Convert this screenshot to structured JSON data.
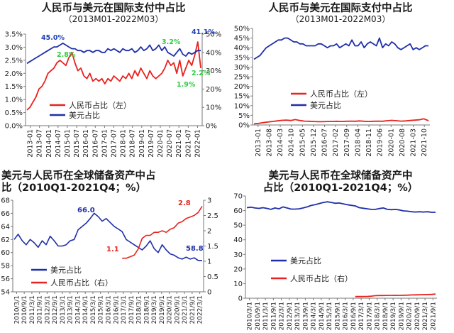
{
  "charts": [
    {
      "id": "p1",
      "title_line1": "人民币与美元在国际支付中占比",
      "title_line2": "（2013M01-2022M03）",
      "type": "line",
      "left_axis": {
        "ticks": [
          "0.0%",
          "0.5%",
          "1.0%",
          "1.5%",
          "2.0%",
          "2.5%",
          "3.0%",
          "3.5%"
        ],
        "min": 0,
        "max": 3.5
      },
      "right_axis": {
        "ticks": [
          "0%",
          "10%",
          "20%",
          "30%",
          "40%",
          "50%"
        ],
        "min": 0,
        "max": 50
      },
      "x_labels": [
        "2013-01",
        "2013-07",
        "2014-01",
        "2014-07",
        "2015-01",
        "2015-07",
        "2016-01",
        "2016-07",
        "2017-01",
        "2017-07",
        "2018-01",
        "2018-07",
        "2019-01",
        "2019-07",
        "2020-01",
        "2020-07",
        "2021-01",
        "2021-07",
        "2022-01"
      ],
      "legend": [
        "人民币占比（左）",
        "美元占比"
      ],
      "annotations": [
        {
          "text": "45.0%",
          "color": "#1f3fb5"
        },
        {
          "text": "2.8%",
          "color": "#2ecc40"
        },
        {
          "text": "3.2%",
          "color": "#2ecc40"
        },
        {
          "text": "41.1%",
          "color": "#1f3fb5"
        },
        {
          "text": "1.9%",
          "color": "#2ecc40"
        },
        {
          "text": "2.2%",
          "color": "#2ecc40"
        }
      ],
      "series": [
        {
          "name": "人民币占比（左）",
          "color": "#e8231f",
          "axis": "left",
          "values": [
            0.6,
            0.7,
            0.9,
            1.1,
            1.4,
            1.5,
            1.7,
            2.0,
            2.1,
            2.2,
            2.4,
            2.5,
            2.4,
            2.3,
            2.6,
            2.8,
            2.4,
            2.1,
            2.2,
            1.9,
            1.8,
            2.0,
            1.7,
            1.8,
            1.7,
            1.8,
            1.6,
            1.8,
            1.7,
            1.9,
            1.8,
            1.7,
            1.9,
            1.8,
            2.0,
            1.8,
            2.1,
            1.9,
            2.2,
            2.0,
            1.8,
            2.1,
            1.9,
            1.8,
            1.9,
            2.0,
            2.2,
            2.5,
            2.3,
            2.4,
            2.0,
            2.5,
            1.9,
            2.2,
            2.5,
            2.3,
            2.7,
            3.2,
            2.2
          ]
        },
        {
          "name": "美元占比",
          "color": "#1f2fa8",
          "axis": "right",
          "values": [
            34,
            35,
            36,
            37,
            38,
            39,
            40,
            41,
            42,
            43,
            43,
            44,
            45,
            44,
            43,
            42,
            42,
            41,
            41,
            40,
            41,
            41,
            40,
            41,
            41,
            40,
            40,
            42,
            41,
            42,
            41,
            40,
            42,
            41,
            41,
            42,
            40,
            41,
            43,
            41,
            42,
            44,
            41,
            42,
            44,
            41,
            43,
            40,
            39,
            38,
            40,
            42,
            39,
            38,
            40,
            39,
            40,
            41,
            41
          ]
        }
      ]
    },
    {
      "id": "p2",
      "title_line1": "人民币与美元在国际支付中占比",
      "title_line2": "（2013M01-2022M03）",
      "type": "line",
      "left_axis": {
        "ticks": [
          "0%",
          "5%",
          "10%",
          "15%",
          "20%",
          "25%",
          "30%",
          "35%",
          "40%",
          "45%",
          "50%"
        ],
        "min": 0,
        "max": 50
      },
      "x_labels": [
        "2013-01",
        "2013-08",
        "2014-03",
        "2014-10",
        "2015-05",
        "2015-12",
        "2016-07",
        "2017-02",
        "2017-09",
        "2018-04",
        "2018-11",
        "2019-06",
        "2020-01",
        "2020-08",
        "2021-03",
        "2021-10"
      ],
      "legend": [
        "人民币占比（左）",
        "美元占比"
      ],
      "series": [
        {
          "name": "人民币占比（左）",
          "color": "#e8231f",
          "values": [
            0.6,
            0.8,
            1.2,
            1.5,
            1.8,
            2.1,
            2.4,
            2.5,
            2.3,
            2.8,
            2.3,
            2.0,
            1.9,
            1.8,
            1.7,
            1.7,
            1.8,
            1.8,
            1.9,
            1.8,
            1.9,
            2.0,
            1.9,
            2.1,
            1.9,
            1.8,
            1.9,
            2.0,
            1.9,
            2.2,
            2.4,
            2.2,
            2.0,
            2.1,
            2.3,
            2.5,
            2.7,
            3.2,
            2.2
          ]
        },
        {
          "name": "美元占比",
          "color": "#1f2fa8",
          "values": [
            34,
            35,
            36,
            38,
            40,
            41,
            42,
            43,
            44,
            44,
            45,
            45,
            44,
            43,
            43,
            42,
            42,
            41,
            41,
            41,
            41,
            42,
            42,
            41,
            40,
            41,
            41,
            42,
            40,
            41,
            42,
            41,
            44,
            41,
            41,
            43,
            40,
            42,
            43,
            42,
            41,
            45,
            40,
            42,
            41,
            43,
            42,
            40,
            39,
            40,
            41,
            42,
            39,
            40,
            39,
            40,
            41,
            41
          ]
        }
      ]
    },
    {
      "id": "p3",
      "title_line1": "美元与人民币在全球储备资产中占",
      "title_line2": "比（2010Q1-2021Q4；%）",
      "type": "line",
      "left_axis": {
        "ticks": [
          "54",
          "56",
          "58",
          "60",
          "62",
          "64",
          "66",
          "68"
        ],
        "min": 54,
        "max": 68
      },
      "right_axis": {
        "ticks": [
          "0",
          "0.5",
          "1",
          "1.5",
          "2",
          "2.5",
          "3"
        ],
        "min": 0,
        "max": 3
      },
      "x_labels": [
        "2010/3/1",
        "2010/9/1",
        "2011/3/1",
        "2011/9/1",
        "2012/3/1",
        "2012/9/1",
        "2013/3/1",
        "2013/9/1",
        "2014/3/1",
        "2014/9/1",
        "2015/3/1",
        "2015/9/1",
        "2016/3/1",
        "2016/9/1",
        "2017/3/1",
        "2017/9/1",
        "2018/3/1",
        "2018/9/1",
        "2019/3/1",
        "2019/9/1",
        "2020/3/1",
        "2020/9/1",
        "2021/3/1",
        "2021/9/1",
        "2022/3/1"
      ],
      "legend": [
        "美元占比",
        "人民币占比（右）"
      ],
      "annotations": [
        {
          "text": "66.0",
          "color": "#1f2fa8"
        },
        {
          "text": "2.8",
          "color": "#e8231f"
        },
        {
          "text": "1.1",
          "color": "#e8231f"
        },
        {
          "text": "58.8",
          "color": "#1f2fa8"
        }
      ],
      "series": [
        {
          "name": "美元占比",
          "color": "#1f2fa8",
          "axis": "left",
          "values": [
            62.0,
            62.8,
            61.8,
            61.2,
            62.0,
            61.5,
            60.8,
            61.8,
            61.2,
            62.5,
            61.8,
            61.0,
            61.0,
            61.2,
            61.8,
            62.0,
            63.5,
            64.0,
            64.5,
            65.2,
            66.0,
            65.5,
            64.8,
            65.2,
            64.6,
            64.0,
            63.6,
            63.2,
            62.0,
            61.6,
            61.2,
            60.8,
            60.4,
            61.0,
            61.8,
            60.6,
            60.0,
            61.2,
            60.4,
            59.8,
            59.6,
            59.2,
            59.0,
            59.3,
            59.0,
            59.2,
            58.8,
            58.8
          ]
        },
        {
          "name": "人民币占比（右）",
          "color": "#e8231f",
          "axis": "right",
          "startIndex": 27,
          "values": [
            1.1,
            1.1,
            1.15,
            1.2,
            1.4,
            1.75,
            1.85,
            1.85,
            1.95,
            1.95,
            2.0,
            1.95,
            2.05,
            2.1,
            2.25,
            2.3,
            2.4,
            2.45,
            2.5,
            2.6,
            2.8
          ]
        }
      ]
    },
    {
      "id": "p4",
      "title_line1": "美元与人民币在全球储备资产中",
      "title_line2": "占比（2010Q1-2021Q4；%）",
      "type": "line",
      "left_axis": {
        "ticks": [
          "0",
          "10",
          "20",
          "30",
          "40",
          "50",
          "60",
          "70"
        ],
        "min": 0,
        "max": 70
      },
      "x_labels": [
        "2010/3/1",
        "2010/9/1",
        "2011/3/1",
        "2011/9/1",
        "2012/3/1",
        "2012/9/1",
        "2013/3/1",
        "2013/9/1",
        "2014/3/1",
        "2014/9/1",
        "2015/3/1",
        "2015/9/1",
        "2016/3/1",
        "2016/9/1",
        "2017/3/1",
        "2017/9/1",
        "2018/3/1",
        "2018/9/1",
        "2019/3/1",
        "2019/9/1",
        "2020/3/1",
        "2020/9/1",
        "2021/3/1",
        "2021/9/1"
      ],
      "legend": [
        "美元占比",
        "人民币占比（右）"
      ],
      "series": [
        {
          "name": "美元占比",
          "color": "#1f2fa8",
          "values": [
            62.0,
            62.3,
            61.8,
            61.5,
            62.0,
            61.5,
            60.8,
            61.8,
            61.2,
            62.5,
            61.8,
            61.0,
            61.0,
            61.2,
            61.8,
            62.5,
            63.5,
            64.0,
            64.8,
            65.5,
            66.0,
            65.6,
            65.0,
            65.2,
            64.6,
            64.0,
            63.6,
            63.2,
            62.0,
            61.6,
            61.2,
            60.8,
            60.8,
            61.4,
            61.8,
            60.8,
            60.6,
            60.8,
            60.4,
            59.8,
            59.6,
            59.2,
            59.0,
            59.2,
            59.0,
            59.2,
            58.8,
            58.8
          ]
        },
        {
          "name": "人民币占比（右）",
          "color": "#e8231f",
          "startIndex": 27,
          "values": [
            1.1,
            1.1,
            1.15,
            1.2,
            1.4,
            1.75,
            1.85,
            1.85,
            1.95,
            1.95,
            2.0,
            1.95,
            2.05,
            2.1,
            2.25,
            2.3,
            2.4,
            2.45,
            2.5,
            2.6,
            2.8
          ]
        }
      ]
    }
  ]
}
